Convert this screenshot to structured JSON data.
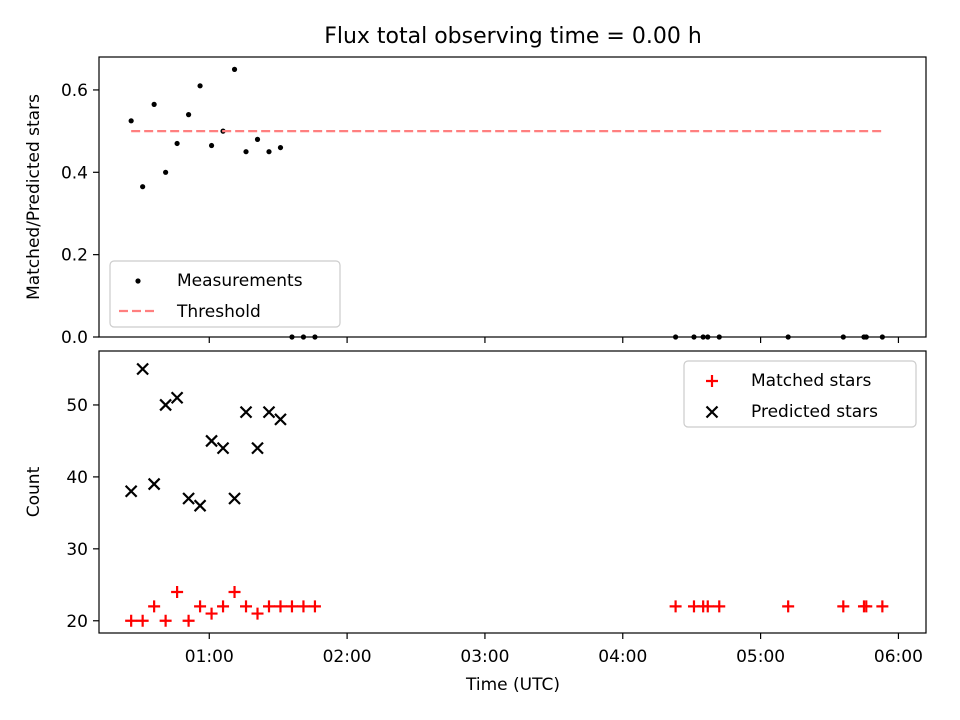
{
  "chart_data": [
    {
      "type": "scatter",
      "title": "Flux total observing time = 0.00 h",
      "xlabel": "",
      "ylabel": "Matched/Predicted stars",
      "xlim": [
        "00:12",
        "06:12"
      ],
      "ylim": [
        0.0,
        0.68
      ],
      "yticks": [
        0.0,
        0.2,
        0.4,
        0.6
      ],
      "ytick_labels": [
        "0.0",
        "0.2",
        "0.4",
        "0.6"
      ],
      "legend_position": "lower left",
      "series": [
        {
          "name": "Measurements",
          "marker": "dot",
          "color": "#000000",
          "points": [
            {
              "x": "00:26",
              "y": 0.525
            },
            {
              "x": "00:31",
              "y": 0.365
            },
            {
              "x": "00:36",
              "y": 0.565
            },
            {
              "x": "00:41",
              "y": 0.4
            },
            {
              "x": "00:46",
              "y": 0.47
            },
            {
              "x": "00:51",
              "y": 0.54
            },
            {
              "x": "00:56",
              "y": 0.61
            },
            {
              "x": "01:01",
              "y": 0.465
            },
            {
              "x": "01:06",
              "y": 0.5
            },
            {
              "x": "01:11",
              "y": 0.65
            },
            {
              "x": "01:16",
              "y": 0.45
            },
            {
              "x": "01:21",
              "y": 0.48
            },
            {
              "x": "01:26",
              "y": 0.45
            },
            {
              "x": "01:31",
              "y": 0.46
            },
            {
              "x": "01:36",
              "y": 0.0
            },
            {
              "x": "01:41",
              "y": 0.0
            },
            {
              "x": "01:46",
              "y": 0.0
            },
            {
              "x": "04:23",
              "y": 0.0
            },
            {
              "x": "04:31",
              "y": 0.0
            },
            {
              "x": "04:35",
              "y": 0.0
            },
            {
              "x": "04:37",
              "y": 0.0
            },
            {
              "x": "04:42",
              "y": 0.0
            },
            {
              "x": "05:12",
              "y": 0.0
            },
            {
              "x": "05:36",
              "y": 0.0
            },
            {
              "x": "05:45",
              "y": 0.0
            },
            {
              "x": "05:46",
              "y": 0.0
            },
            {
              "x": "05:53",
              "y": 0.0
            }
          ]
        },
        {
          "name": "Threshold",
          "style": "dashed",
          "color": "#ff7f7f",
          "points": [
            {
              "x": "00:26",
              "y": 0.5
            },
            {
              "x": "05:53",
              "y": 0.5
            }
          ]
        }
      ]
    },
    {
      "type": "scatter",
      "title": "",
      "xlabel": "Time (UTC)",
      "ylabel": "Count",
      "xlim": [
        "00:12",
        "06:12"
      ],
      "ylim": [
        18.3,
        57.5
      ],
      "yticks": [
        20,
        30,
        40,
        50
      ],
      "ytick_labels": [
        "20",
        "30",
        "40",
        "50"
      ],
      "xticks": [
        "01:00",
        "02:00",
        "03:00",
        "04:00",
        "05:00",
        "06:00"
      ],
      "xtick_labels": [
        "01:00",
        "02:00",
        "03:00",
        "04:00",
        "05:00",
        "06:00"
      ],
      "legend_position": "upper right",
      "series": [
        {
          "name": "Matched stars",
          "marker": "plus",
          "color": "#ff0000",
          "points": [
            {
              "x": "00:26",
              "y": 20
            },
            {
              "x": "00:31",
              "y": 20
            },
            {
              "x": "00:36",
              "y": 22
            },
            {
              "x": "00:41",
              "y": 20
            },
            {
              "x": "00:46",
              "y": 24
            },
            {
              "x": "00:51",
              "y": 20
            },
            {
              "x": "00:56",
              "y": 22
            },
            {
              "x": "01:01",
              "y": 21
            },
            {
              "x": "01:06",
              "y": 22
            },
            {
              "x": "01:11",
              "y": 24
            },
            {
              "x": "01:16",
              "y": 22
            },
            {
              "x": "01:21",
              "y": 21
            },
            {
              "x": "01:26",
              "y": 22
            },
            {
              "x": "01:31",
              "y": 22
            },
            {
              "x": "01:36",
              "y": 22
            },
            {
              "x": "01:41",
              "y": 22
            },
            {
              "x": "01:46",
              "y": 22
            },
            {
              "x": "04:23",
              "y": 22
            },
            {
              "x": "04:31",
              "y": 22
            },
            {
              "x": "04:35",
              "y": 22
            },
            {
              "x": "04:37",
              "y": 22
            },
            {
              "x": "04:42",
              "y": 22
            },
            {
              "x": "05:12",
              "y": 22
            },
            {
              "x": "05:36",
              "y": 22
            },
            {
              "x": "05:45",
              "y": 22
            },
            {
              "x": "05:46",
              "y": 22
            },
            {
              "x": "05:53",
              "y": 22
            }
          ]
        },
        {
          "name": "Predicted stars",
          "marker": "x",
          "color": "#000000",
          "points": [
            {
              "x": "00:26",
              "y": 38
            },
            {
              "x": "00:31",
              "y": 55
            },
            {
              "x": "00:36",
              "y": 39
            },
            {
              "x": "00:41",
              "y": 50
            },
            {
              "x": "00:46",
              "y": 51
            },
            {
              "x": "00:51",
              "y": 37
            },
            {
              "x": "00:56",
              "y": 36
            },
            {
              "x": "01:01",
              "y": 45
            },
            {
              "x": "01:06",
              "y": 44
            },
            {
              "x": "01:11",
              "y": 37
            },
            {
              "x": "01:16",
              "y": 49
            },
            {
              "x": "01:21",
              "y": 44
            },
            {
              "x": "01:26",
              "y": 49
            },
            {
              "x": "01:31",
              "y": 48
            }
          ]
        }
      ]
    }
  ]
}
